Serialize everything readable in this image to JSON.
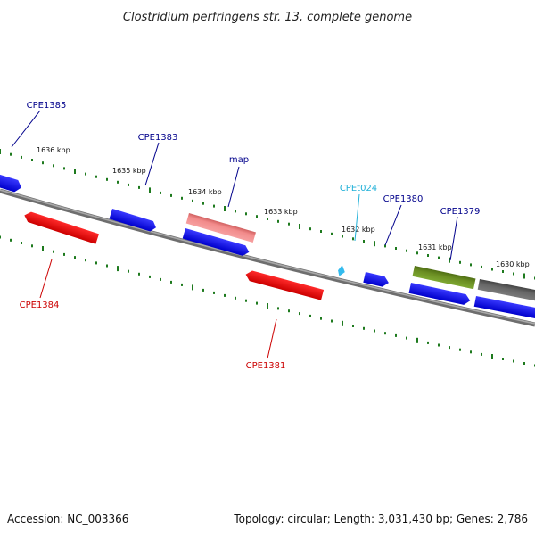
{
  "header": {
    "title": "Clostridium perfringens str. 13, complete genome"
  },
  "footer": {
    "accession": "Accession: NC_003366",
    "summary": "Topology: circular; Length: 3,031,430 bp; Genes: 2,786"
  },
  "colors": {
    "backbone": "#888888",
    "tick": "#1e7a1e",
    "label_blue": "#00008b",
    "label_red": "#cc0000",
    "label_cyan": "#20b0d8",
    "gene_blue": "#0000ee",
    "gene_red": "#ff0000",
    "gene_pink": "#f08080",
    "gene_olive": "#6b8e23",
    "gene_gray": "#666666",
    "gene_cyan": "#33bbee"
  },
  "ticks": {
    "major_labels": [
      "1636 kbp",
      "1635 kbp",
      "1634 kbp",
      "1633 kbp",
      "1632 kbp",
      "1631 kbp",
      "1630 kbp"
    ]
  },
  "genes": [
    {
      "name": "CPE1385",
      "color": "gene_blue"
    },
    {
      "name": "CPE1383",
      "color": "gene_blue"
    },
    {
      "name": "map",
      "color": "gene_blue"
    },
    {
      "name": "CPEt024",
      "color": "gene_cyan"
    },
    {
      "name": "CPE1380",
      "color": "gene_blue"
    },
    {
      "name": "CPE1379",
      "color": "gene_blue"
    },
    {
      "name": "CPE1384",
      "color": "gene_red"
    },
    {
      "name": "CPE1381",
      "color": "gene_red"
    }
  ]
}
